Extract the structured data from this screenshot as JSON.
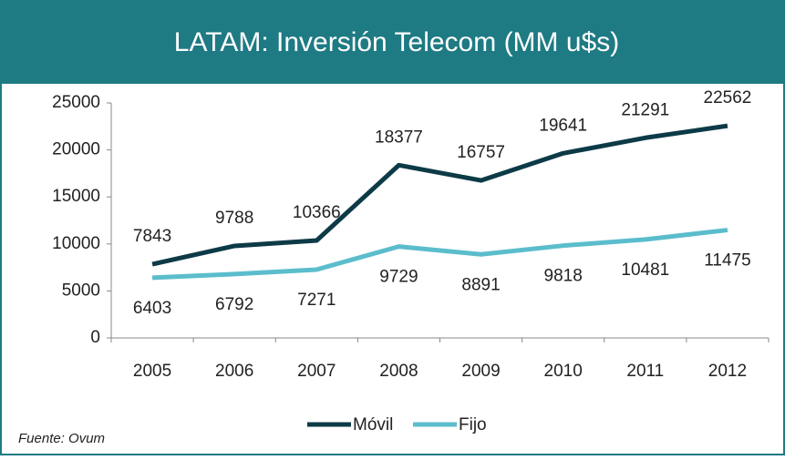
{
  "chart_data": {
    "type": "line",
    "title": "LATAM: Inversión Telecom (MM u$s)",
    "categories": [
      "2005",
      "2006",
      "2007",
      "2008",
      "2009",
      "2010",
      "2011",
      "2012"
    ],
    "series": [
      {
        "name": "Móvil",
        "color": "#0d3a47",
        "values": [
          7843,
          9788,
          10366,
          18377,
          16757,
          19641,
          21291,
          22562
        ]
      },
      {
        "name": "Fijo",
        "color": "#5bbdcc",
        "values": [
          6403,
          6792,
          7271,
          9729,
          8891,
          9818,
          10481,
          11475
        ]
      }
    ],
    "ylim": [
      0,
      25000
    ],
    "yticks": [
      0,
      5000,
      10000,
      15000,
      20000,
      25000
    ],
    "legend": "bottom",
    "source": "Fuente: Ovum"
  }
}
